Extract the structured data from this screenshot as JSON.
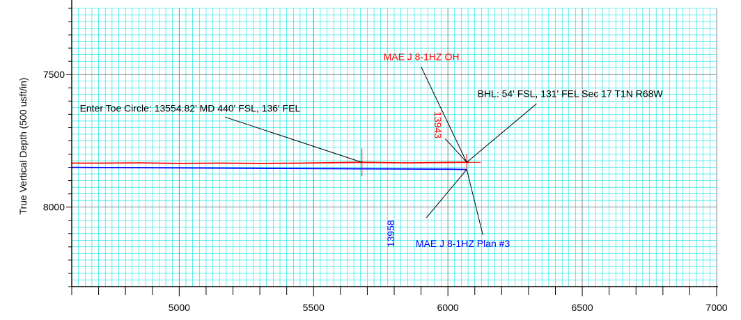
{
  "chart_data": {
    "type": "line",
    "title": "",
    "xlabel": "",
    "ylabel": "True Vertical Depth (500 usft/in)",
    "xlim": [
      4600,
      7000
    ],
    "ylim": [
      7250,
      8300
    ],
    "y_inverted": true,
    "grid": true,
    "x_major_ticks": [
      5000,
      5500,
      6000,
      6500,
      7000
    ],
    "x_tick_labels": [
      "5000",
      "5500",
      "6000",
      "6500",
      "7000"
    ],
    "y_major_ticks": [
      7500,
      8000
    ],
    "y_tick_labels": [
      "7500",
      "8000"
    ],
    "colors": {
      "grid": "#00e1e1",
      "major_grid": "#808080",
      "actual": "#ff0000",
      "plan": "#0000ff",
      "annotation": "#000000"
    },
    "series": [
      {
        "name": "MAE J 8-1HZ OH",
        "color": "#ff0000",
        "x": [
          4600,
          4700,
          4850,
          5000,
          5150,
          5300,
          5450,
          5600,
          5680,
          5750,
          5850,
          5950,
          6050,
          6080
        ],
        "y": [
          7834,
          7834,
          7833,
          7835,
          7834,
          7835,
          7834,
          7832,
          7831,
          7832,
          7833,
          7832,
          7831,
          7831
        ]
      },
      {
        "name": "MAE J 8-1HZ Plan #3",
        "color": "#0000ff",
        "x": [
          4600,
          4800,
          5000,
          5200,
          5400,
          5600,
          5800,
          6000,
          6070
        ],
        "y": [
          7850,
          7851,
          7852,
          7853,
          7854,
          7855,
          7856,
          7857,
          7858
        ]
      }
    ],
    "markers": [
      {
        "x": 5680,
        "y": 7831,
        "color": "#ff0000",
        "kind": "tick"
      },
      {
        "x": 6070,
        "y": 7831,
        "color": "#ff0000",
        "kind": "cross"
      }
    ],
    "annotations": [
      {
        "text": "MAE J 8-1HZ OH",
        "color": "#ff0000",
        "x": 5760,
        "y": 7446,
        "anchor": "start",
        "rotate": 0,
        "leader": [
          [
            5900,
            7470
          ],
          [
            6070,
            7831
          ]
        ]
      },
      {
        "text": "BHL: 54' FSL, 131' FEL Sec 17 T1N R68W",
        "color": "#000000",
        "x": 6110,
        "y": 7585,
        "anchor": "start",
        "rotate": 0,
        "leader": [
          [
            6330,
            7610
          ],
          [
            6070,
            7831
          ]
        ]
      },
      {
        "text": "Enter Toe Circle: 13554.82' MD 440' FSL, 136' FEL",
        "color": "#000000",
        "x": 4630,
        "y": 7640,
        "anchor": "start",
        "rotate": 0,
        "leader": [
          [
            5170,
            7660
          ],
          [
            5680,
            7831
          ]
        ]
      },
      {
        "text": "13943",
        "color": "#ff0000",
        "x": 5950,
        "y": 7690,
        "anchor": "middle",
        "rotate": 90,
        "leader": [
          [
            5990,
            7742
          ],
          [
            6070,
            7831
          ]
        ]
      },
      {
        "text": "13958",
        "color": "#0000ff",
        "x": 5800,
        "y": 8100,
        "anchor": "middle",
        "rotate": -90,
        "leader": [
          [
            5920,
            8040
          ],
          [
            6070,
            7858
          ]
        ]
      },
      {
        "text": "MAE J 8-1HZ Plan #3",
        "color": "#0000ff",
        "x": 5880,
        "y": 8150,
        "anchor": "start",
        "rotate": 0,
        "leader": [
          [
            6130,
            8105
          ],
          [
            6070,
            7858
          ]
        ]
      }
    ]
  }
}
